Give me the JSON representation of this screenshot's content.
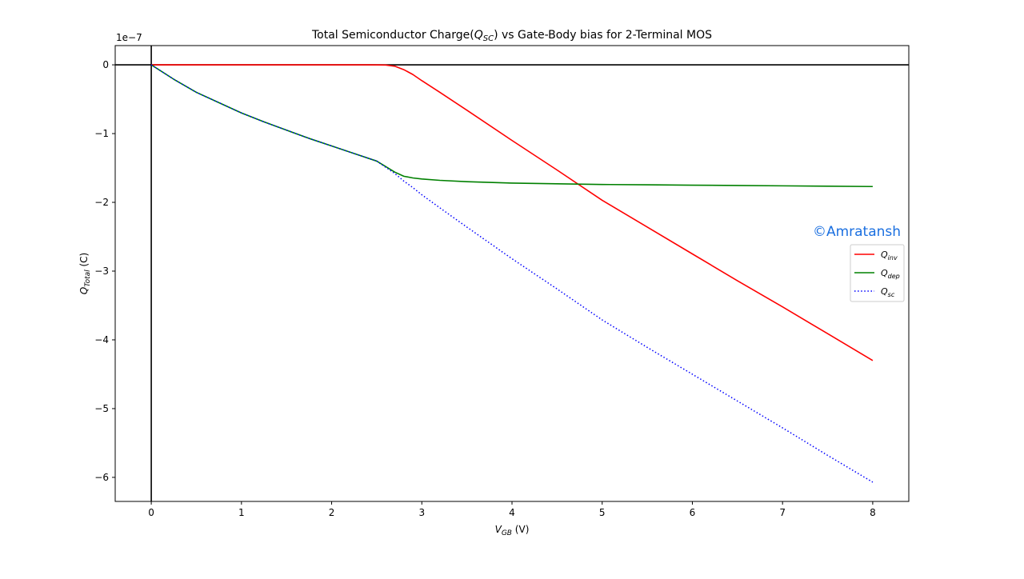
{
  "chart_data": {
    "type": "line",
    "title_prefix": "Total Semiconductor Charge(",
    "title_math": "Q",
    "title_math_sub": "SC",
    "title_suffix": ")  vs   Gate-Body bias for 2-Terminal MOS",
    "xlabel": "V",
    "xlabel_sub": "GB",
    "xlabel_unit": " (V)",
    "ylabel": "Q",
    "ylabel_sub": "Total",
    "ylabel_unit": " (C)",
    "offset_label": "1e−7",
    "xlim": [
      -0.4,
      8.4
    ],
    "ylim": [
      -6.35,
      0.28
    ],
    "xticks": [
      0,
      1,
      2,
      3,
      4,
      5,
      6,
      7,
      8
    ],
    "yticks": [
      0,
      -1,
      -2,
      -3,
      -4,
      -5,
      -6
    ],
    "ytick_labels": [
      "0",
      "−1",
      "−2",
      "−3",
      "−4",
      "−5",
      "−6"
    ],
    "grid": false,
    "legend_position": "right",
    "series": [
      {
        "name": "Q",
        "name_sub": "inv",
        "color": "#ff0000",
        "style": "solid",
        "x": [
          0,
          0.5,
          1,
          1.5,
          2,
          2.4,
          2.6,
          2.7,
          2.8,
          2.9,
          3.0,
          3.2,
          3.5,
          4.0,
          4.5,
          5.0,
          5.5,
          6.0,
          6.5,
          7.0,
          7.5,
          8.0
        ],
        "y": [
          0,
          0,
          0,
          0,
          0,
          0,
          -0.003,
          -0.02,
          -0.07,
          -0.14,
          -0.23,
          -0.4,
          -0.66,
          -1.1,
          -1.53,
          -1.97,
          -2.36,
          -2.75,
          -3.14,
          -3.52,
          -3.91,
          -4.3
        ]
      },
      {
        "name": "Q",
        "name_sub": "dep",
        "color": "#008000",
        "style": "solid",
        "x": [
          0,
          0.25,
          0.5,
          0.75,
          1,
          1.25,
          1.5,
          1.75,
          2,
          2.25,
          2.5,
          2.7,
          2.8,
          2.9,
          3.0,
          3.2,
          3.5,
          4.0,
          4.5,
          5.0,
          5.5,
          6.0,
          6.5,
          7.0,
          7.5,
          8.0
        ],
        "y": [
          0,
          -0.21,
          -0.4,
          -0.55,
          -0.7,
          -0.83,
          -0.95,
          -1.07,
          -1.18,
          -1.29,
          -1.4,
          -1.56,
          -1.62,
          -1.645,
          -1.66,
          -1.68,
          -1.7,
          -1.72,
          -1.73,
          -1.74,
          -1.745,
          -1.75,
          -1.755,
          -1.76,
          -1.765,
          -1.77
        ]
      },
      {
        "name": "Q",
        "name_sub": "sc",
        "color": "#0000ff",
        "style": "dotted",
        "x": [
          0,
          0.25,
          0.5,
          0.75,
          1,
          1.25,
          1.5,
          1.75,
          2,
          2.25,
          2.5,
          2.7,
          2.8,
          2.9,
          3.0,
          3.2,
          3.5,
          4.0,
          4.5,
          5.0,
          5.5,
          6.0,
          6.5,
          7.0,
          7.5,
          8.0
        ],
        "y": [
          0,
          -0.21,
          -0.4,
          -0.55,
          -0.7,
          -0.83,
          -0.95,
          -1.07,
          -1.18,
          -1.29,
          -1.4,
          -1.58,
          -1.69,
          -1.785,
          -1.89,
          -2.08,
          -2.36,
          -2.82,
          -3.26,
          -3.71,
          -4.11,
          -4.5,
          -4.89,
          -5.28,
          -5.68,
          -6.07
        ]
      }
    ]
  },
  "watermark": "©Amratansh"
}
